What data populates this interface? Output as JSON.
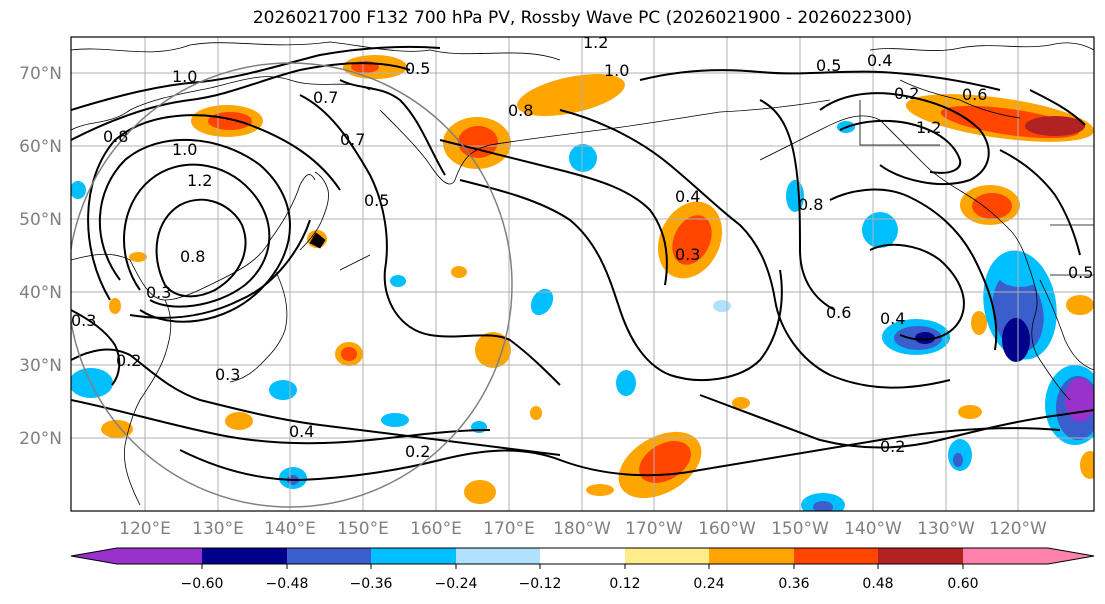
{
  "title": "2026021700 F132 700 hPa PV, Rossby Wave PC (2026021900 - 2026022300)",
  "latitude_labels": [
    "70°N",
    "60°N",
    "50°N",
    "40°N",
    "30°N",
    "20°N"
  ],
  "longitude_labels": [
    "120°E",
    "130°E",
    "140°E",
    "150°E",
    "160°E",
    "170°E",
    "180°W",
    "170°W",
    "160°W",
    "150°W",
    "140°W",
    "130°W",
    "120°W"
  ],
  "colorbar": {
    "tick_labels": [
      "−0.60",
      "−0.48",
      "−0.36",
      "−0.24",
      "−0.12",
      "0.12",
      "0.24",
      "0.36",
      "0.48",
      "0.60"
    ],
    "colors": [
      "#9932cc",
      "#00008b",
      "#3a5fcd",
      "#00bfff",
      "#b0e2ff",
      "#ffffff",
      "#ffec8b",
      "#ffa500",
      "#ff4500",
      "#b22222",
      "#ff82ab"
    ]
  },
  "contour_labels": [
    "1.2",
    "0.5",
    "1.0",
    "0.5",
    "0.4",
    "1.0",
    "0.7",
    "0.8",
    "0.2",
    "0.6",
    "0.8",
    "0.7",
    "1.2",
    "1.0",
    "1.2",
    "0.5",
    "0.4",
    "0.8",
    "0.3",
    "0.5",
    "0.8",
    "0.3",
    "0.6",
    "0.4",
    "0.3",
    "0.2",
    "0.4",
    "0.2",
    "0.2",
    "0.3"
  ]
}
